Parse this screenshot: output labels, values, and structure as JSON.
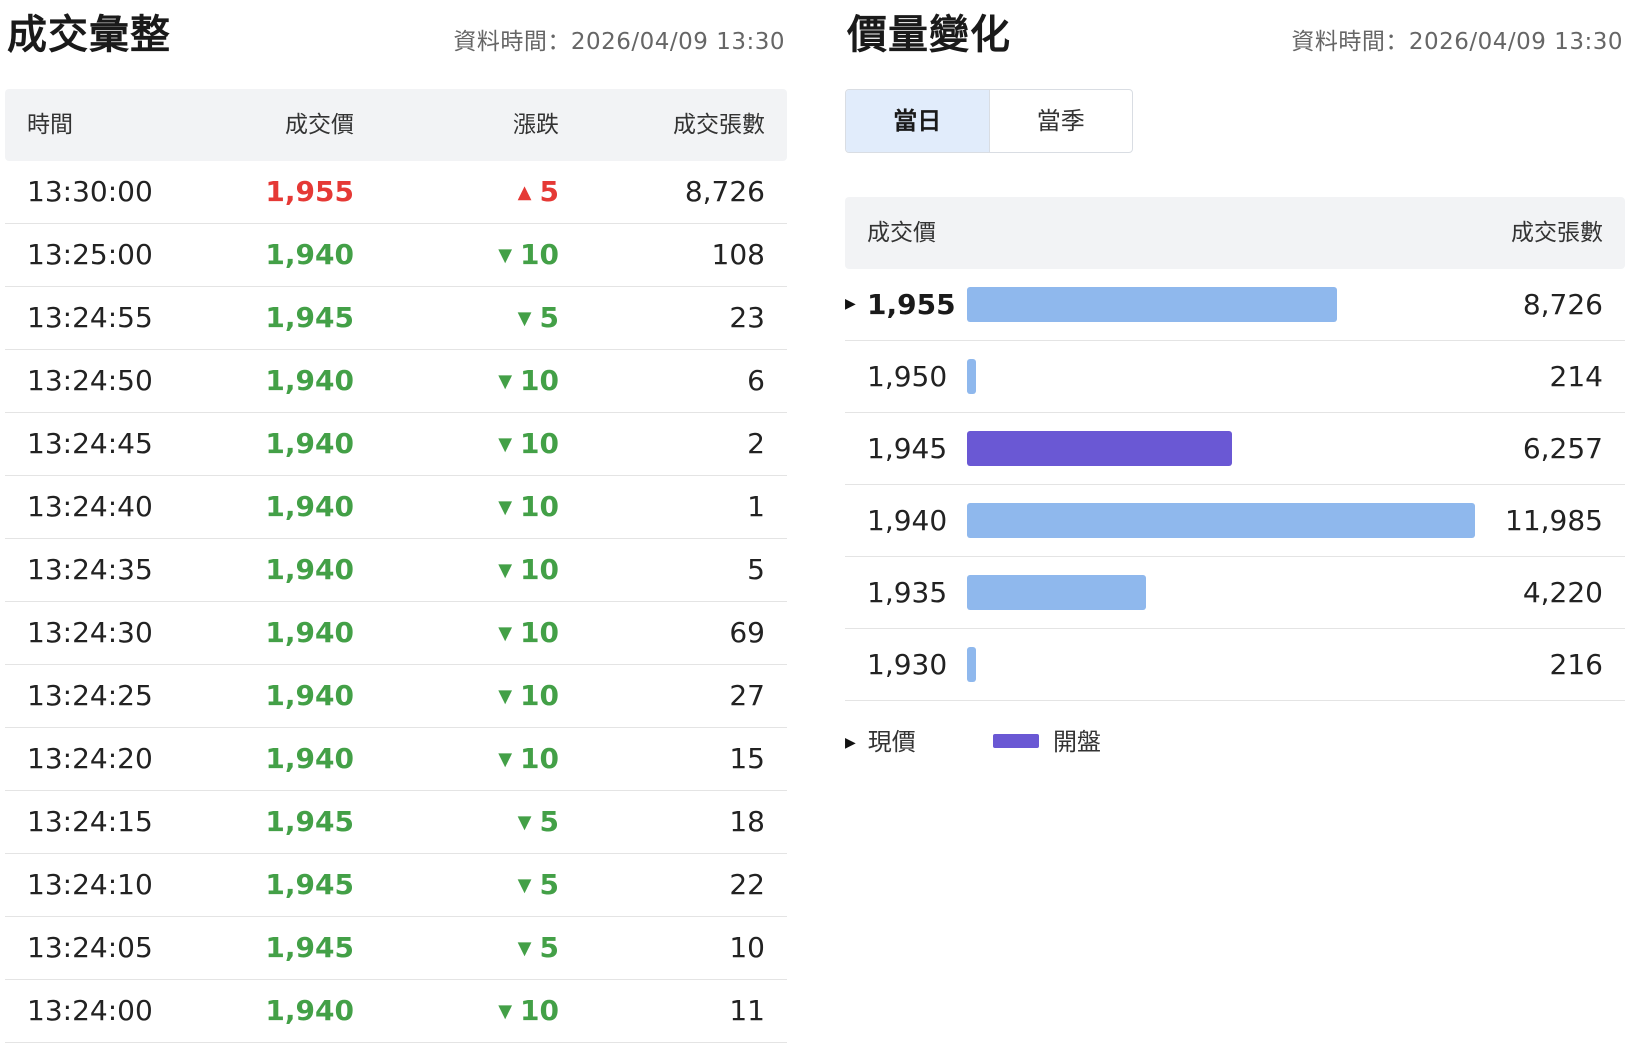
{
  "trades": {
    "title": "成交彙整",
    "timestamp": "資料時間：2026/04/09 13:30",
    "headers": {
      "time": "時間",
      "price": "成交價",
      "change": "漲跌",
      "volume": "成交張數"
    },
    "rows": [
      {
        "time": "13:30:00",
        "price": "1,955",
        "direction": "up",
        "change": "5",
        "volume": "8,726"
      },
      {
        "time": "13:25:00",
        "price": "1,940",
        "direction": "down",
        "change": "10",
        "volume": "108"
      },
      {
        "time": "13:24:55",
        "price": "1,945",
        "direction": "down",
        "change": "5",
        "volume": "23"
      },
      {
        "time": "13:24:50",
        "price": "1,940",
        "direction": "down",
        "change": "10",
        "volume": "6"
      },
      {
        "time": "13:24:45",
        "price": "1,940",
        "direction": "down",
        "change": "10",
        "volume": "2"
      },
      {
        "time": "13:24:40",
        "price": "1,940",
        "direction": "down",
        "change": "10",
        "volume": "1"
      },
      {
        "time": "13:24:35",
        "price": "1,940",
        "direction": "down",
        "change": "10",
        "volume": "5"
      },
      {
        "time": "13:24:30",
        "price": "1,940",
        "direction": "down",
        "change": "10",
        "volume": "69"
      },
      {
        "time": "13:24:25",
        "price": "1,940",
        "direction": "down",
        "change": "10",
        "volume": "27"
      },
      {
        "time": "13:24:20",
        "price": "1,940",
        "direction": "down",
        "change": "10",
        "volume": "15"
      },
      {
        "time": "13:24:15",
        "price": "1,945",
        "direction": "down",
        "change": "5",
        "volume": "18"
      },
      {
        "time": "13:24:10",
        "price": "1,945",
        "direction": "down",
        "change": "5",
        "volume": "22"
      },
      {
        "time": "13:24:05",
        "price": "1,945",
        "direction": "down",
        "change": "5",
        "volume": "10"
      },
      {
        "time": "13:24:00",
        "price": "1,940",
        "direction": "down",
        "change": "10",
        "volume": "11"
      }
    ]
  },
  "volume_profile": {
    "title": "價量變化",
    "timestamp": "資料時間：2026/04/09 13:30",
    "tabs": [
      {
        "label": "當日",
        "active": true
      },
      {
        "label": "當季",
        "active": false
      }
    ],
    "headers": {
      "price": "成交價",
      "volume": "成交張數"
    },
    "rows": [
      {
        "price": "1,955",
        "volume": "8,726",
        "volume_value": 8726,
        "is_current": true,
        "is_open": false
      },
      {
        "price": "1,950",
        "volume": "214",
        "volume_value": 214,
        "is_current": false,
        "is_open": false
      },
      {
        "price": "1,945",
        "volume": "6,257",
        "volume_value": 6257,
        "is_current": false,
        "is_open": true
      },
      {
        "price": "1,940",
        "volume": "11,985",
        "volume_value": 11985,
        "is_current": false,
        "is_open": false
      },
      {
        "price": "1,935",
        "volume": "4,220",
        "volume_value": 4220,
        "is_current": false,
        "is_open": false
      },
      {
        "price": "1,930",
        "volume": "216",
        "volume_value": 216,
        "is_current": false,
        "is_open": false
      }
    ],
    "legend": {
      "current_label": "現價",
      "open_label": "開盤"
    }
  },
  "colors": {
    "up": "#e53935",
    "down": "#43a047",
    "bar": "#8fb8ed",
    "open_bar": "#6a58d4",
    "active_tab": "#e1ecfb"
  },
  "icons": {
    "up": "triangle-up-icon",
    "down": "triangle-down-icon",
    "current": "triangle-right-icon"
  }
}
